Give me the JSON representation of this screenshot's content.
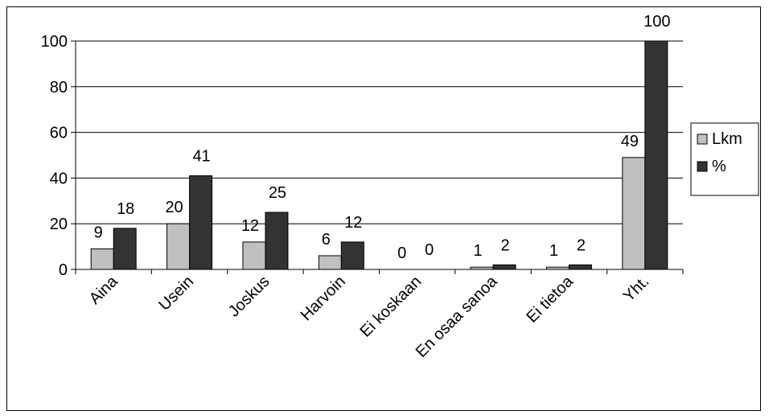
{
  "chart_data": {
    "type": "bar",
    "categories": [
      "Aina",
      "Usein",
      "Joskus",
      "Harvoin",
      "Ei koskaan",
      "En osaa sanoa",
      "Ei tietoa",
      "Yht."
    ],
    "series": [
      {
        "name": "Lkm",
        "values": [
          9,
          20,
          12,
          6,
          0,
          1,
          1,
          49
        ],
        "color": "#c0c0c0"
      },
      {
        "name": "%",
        "values": [
          18,
          41,
          25,
          12,
          0,
          2,
          2,
          100
        ],
        "color": "#333333"
      }
    ],
    "y_ticks": [
      "0",
      "20",
      "40",
      "60",
      "80",
      "100"
    ],
    "ylim": [
      0,
      100
    ],
    "grid": true,
    "legend_position": "right"
  }
}
